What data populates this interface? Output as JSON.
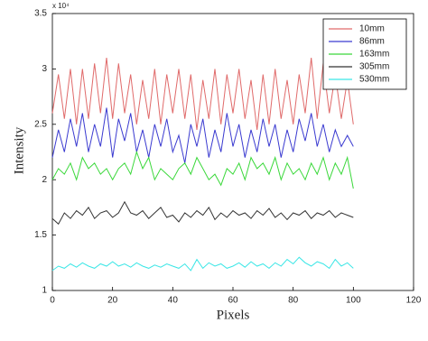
{
  "chart_data": {
    "type": "line",
    "xlabel": "Pixels",
    "ylabel": "Intensity",
    "y_multiplier": "x 10⁴",
    "x": [
      0,
      2,
      4,
      6,
      8,
      10,
      12,
      14,
      16,
      18,
      20,
      22,
      24,
      26,
      28,
      30,
      32,
      34,
      36,
      38,
      40,
      42,
      44,
      46,
      48,
      50,
      52,
      54,
      56,
      58,
      60,
      62,
      64,
      66,
      68,
      70,
      72,
      74,
      76,
      78,
      80,
      82,
      84,
      86,
      88,
      90,
      92,
      94,
      96,
      98,
      100
    ],
    "series": [
      {
        "name": "10mm",
        "color": "#e06a6a",
        "values": [
          2.6,
          2.95,
          2.55,
          3.0,
          2.5,
          3.0,
          2.55,
          3.05,
          2.6,
          3.1,
          2.55,
          3.05,
          2.6,
          2.95,
          2.5,
          2.9,
          2.55,
          3.0,
          2.5,
          2.95,
          2.6,
          3.0,
          2.55,
          2.95,
          2.45,
          2.9,
          2.55,
          3.0,
          2.5,
          2.95,
          2.6,
          3.0,
          2.55,
          2.9,
          2.45,
          2.95,
          2.5,
          3.0,
          2.55,
          2.9,
          2.5,
          2.95,
          2.6,
          3.1,
          2.55,
          3.05,
          2.6,
          2.95,
          2.55,
          2.9,
          2.5
        ]
      },
      {
        "name": "86mm",
        "color": "#3a3ad0",
        "values": [
          2.2,
          2.45,
          2.25,
          2.55,
          2.3,
          2.6,
          2.25,
          2.5,
          2.3,
          2.65,
          2.2,
          2.55,
          2.35,
          2.6,
          2.25,
          2.45,
          2.2,
          2.5,
          2.3,
          2.55,
          2.25,
          2.4,
          2.15,
          2.5,
          2.3,
          2.55,
          2.2,
          2.45,
          2.25,
          2.6,
          2.3,
          2.5,
          2.2,
          2.45,
          2.25,
          2.55,
          2.3,
          2.5,
          2.2,
          2.45,
          2.25,
          2.55,
          2.35,
          2.6,
          2.3,
          2.5,
          2.25,
          2.45,
          2.3,
          2.4,
          2.3
        ]
      },
      {
        "name": "163mm",
        "color": "#3ad83a",
        "values": [
          2.0,
          2.1,
          2.05,
          2.15,
          2.0,
          2.2,
          2.1,
          2.15,
          2.05,
          2.1,
          2.0,
          2.1,
          2.15,
          2.05,
          2.25,
          2.1,
          2.2,
          2.0,
          2.1,
          2.05,
          2.0,
          2.1,
          2.15,
          2.05,
          2.2,
          2.1,
          2.0,
          2.05,
          1.95,
          2.1,
          2.05,
          2.15,
          2.0,
          2.2,
          2.1,
          2.15,
          2.05,
          2.2,
          2.0,
          2.15,
          2.05,
          2.1,
          2.0,
          2.15,
          2.05,
          2.2,
          2.0,
          2.15,
          2.05,
          2.2,
          1.92
        ]
      },
      {
        "name": "305mm",
        "color": "#333333",
        "values": [
          1.65,
          1.6,
          1.7,
          1.65,
          1.72,
          1.68,
          1.75,
          1.65,
          1.7,
          1.72,
          1.66,
          1.7,
          1.8,
          1.7,
          1.68,
          1.72,
          1.65,
          1.7,
          1.75,
          1.66,
          1.68,
          1.62,
          1.7,
          1.66,
          1.72,
          1.68,
          1.75,
          1.64,
          1.7,
          1.66,
          1.72,
          1.68,
          1.7,
          1.65,
          1.72,
          1.68,
          1.74,
          1.66,
          1.7,
          1.64,
          1.7,
          1.68,
          1.72,
          1.65,
          1.7,
          1.68,
          1.72,
          1.66,
          1.7,
          1.68,
          1.66
        ]
      },
      {
        "name": "530mm",
        "color": "#3ae6e6",
        "values": [
          1.18,
          1.22,
          1.2,
          1.24,
          1.21,
          1.25,
          1.22,
          1.2,
          1.24,
          1.22,
          1.26,
          1.22,
          1.24,
          1.21,
          1.25,
          1.22,
          1.2,
          1.23,
          1.21,
          1.24,
          1.22,
          1.2,
          1.24,
          1.18,
          1.28,
          1.2,
          1.25,
          1.22,
          1.24,
          1.2,
          1.22,
          1.25,
          1.21,
          1.26,
          1.22,
          1.24,
          1.2,
          1.25,
          1.22,
          1.28,
          1.24,
          1.3,
          1.25,
          1.22,
          1.26,
          1.24,
          1.2,
          1.28,
          1.22,
          1.25,
          1.2
        ]
      }
    ],
    "xlim": [
      0,
      120
    ],
    "xticks": [
      0,
      20,
      40,
      60,
      80,
      100,
      120
    ],
    "ylim": [
      1,
      3.5
    ],
    "yticks": [
      1,
      1.5,
      2,
      2.5,
      3,
      3.5
    ],
    "grid": false,
    "legend": "upper right"
  }
}
